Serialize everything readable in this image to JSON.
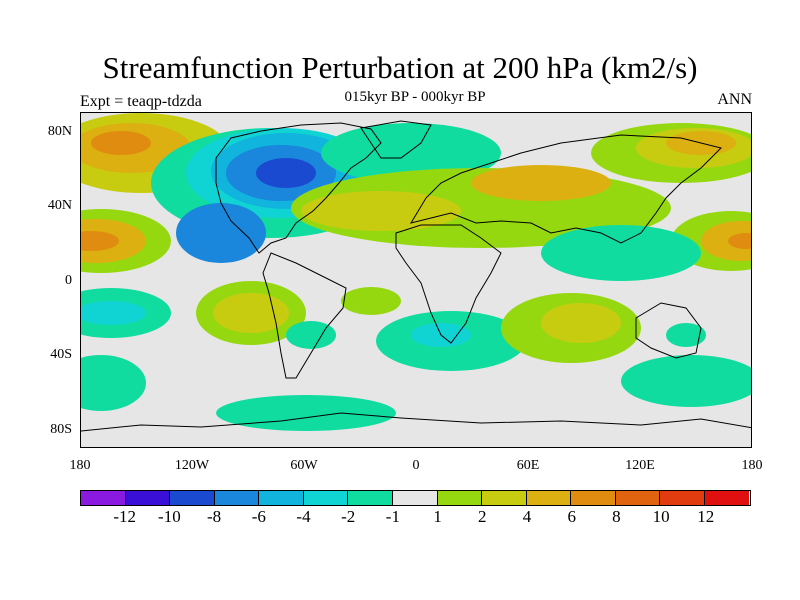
{
  "title": "Streamfunction Perturbation at 200 hPa (km2/s)",
  "subtitle": "015kyr BP - 000kyr BP",
  "left_label": "Expt = teaqp-tdzda",
  "right_label": "ANN",
  "lat_labels": [
    "80N",
    "40N",
    "0",
    "40S",
    "80S"
  ],
  "lon_labels": [
    "180",
    "120W",
    "60W",
    "0",
    "60E",
    "120E",
    "180"
  ],
  "colorbar": {
    "colors": [
      "#8a1ae0",
      "#3a10d8",
      "#1a4ad0",
      "#1a86dc",
      "#10b4dc",
      "#10d4d4",
      "#10dca0",
      "#e6e6e6",
      "#96d810",
      "#c8cc10",
      "#dcb010",
      "#e08c10",
      "#e06410",
      "#e03c10",
      "#e01010"
    ],
    "labels": [
      "-12",
      "-10",
      "-8",
      "-6",
      "-4",
      "-2",
      "-1",
      "1",
      "2",
      "4",
      "6",
      "8",
      "10",
      "12"
    ]
  },
  "colors": {
    "background_field": "#e6e6e6"
  }
}
